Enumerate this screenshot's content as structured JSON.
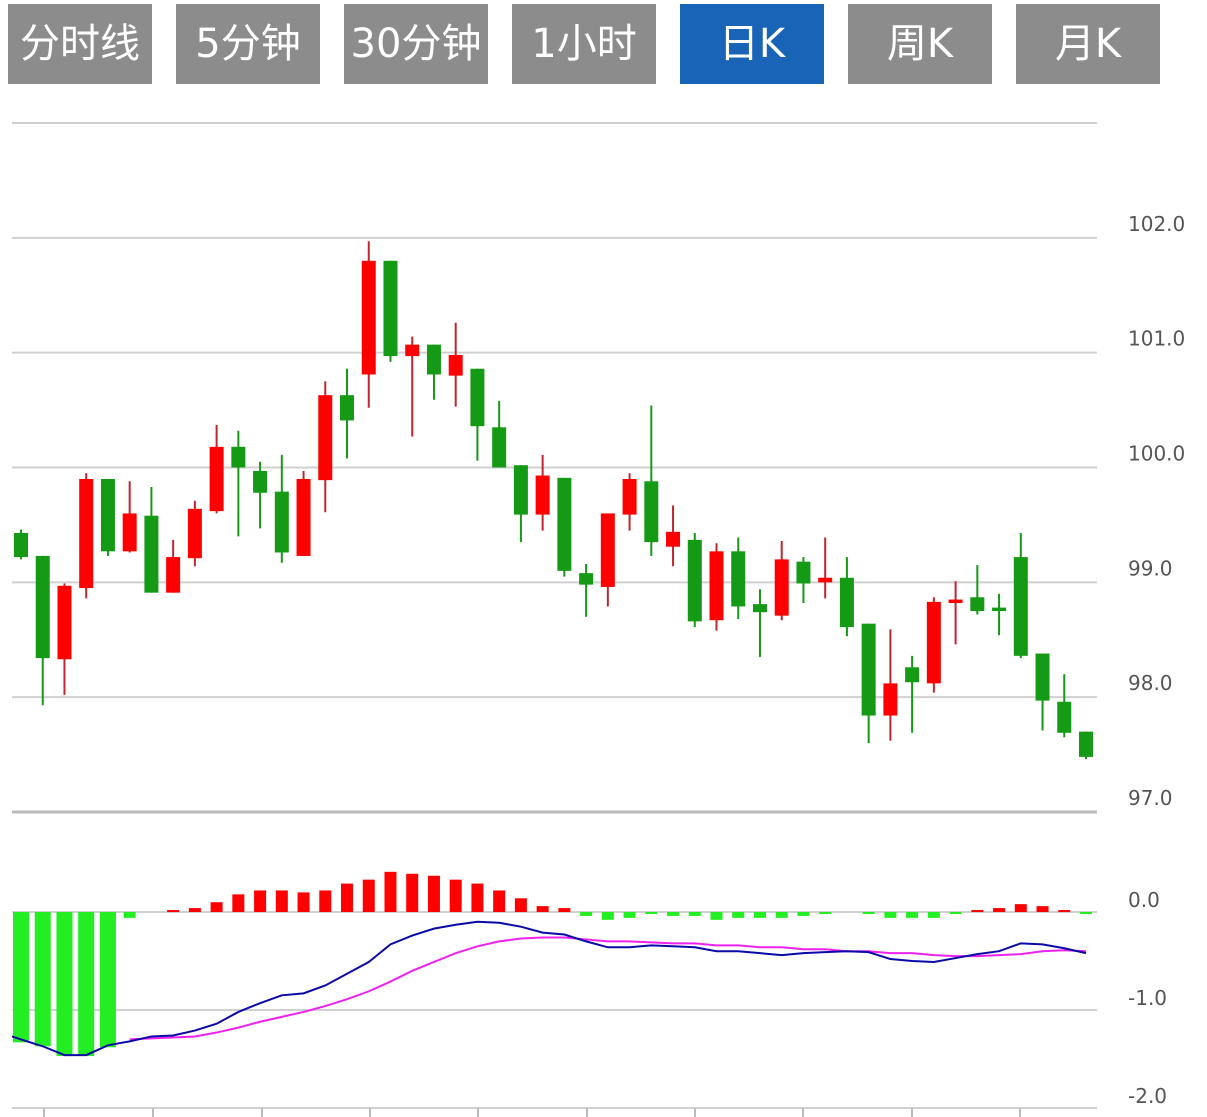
{
  "tabs": [
    {
      "label": "分时线",
      "active": false
    },
    {
      "label": "5分钟",
      "active": false
    },
    {
      "label": "30分钟",
      "active": false
    },
    {
      "label": "1小时",
      "active": false
    },
    {
      "label": "日K",
      "active": true
    },
    {
      "label": "周K",
      "active": false
    },
    {
      "label": "月K",
      "active": false
    }
  ],
  "colors": {
    "up": "#ff0000",
    "down": "#149a14",
    "hist_up": "#ff0000",
    "hist_down": "#22ee22",
    "dif": "#0a0aa8",
    "dea": "#ee22ee",
    "tab": "#8c8c8c",
    "tab_active": "#1a64b8",
    "grid": "#d0d0d0"
  },
  "chart_data": [
    {
      "type": "candlestick",
      "ylim": [
        97.0,
        103.0
      ],
      "yticks": [
        "97.0",
        "98.0",
        "99.0",
        "100.0",
        "101.0",
        "102.0"
      ],
      "grid": true,
      "candles": [
        [
          99.43,
          99.22,
          99.46,
          99.2
        ],
        [
          99.23,
          98.34,
          99.23,
          97.93
        ],
        [
          98.33,
          98.97,
          98.99,
          98.02
        ],
        [
          98.95,
          99.9,
          99.95,
          98.86
        ],
        [
          99.9,
          99.27,
          99.9,
          99.23
        ],
        [
          99.27,
          99.6,
          99.88,
          99.26
        ],
        [
          99.58,
          98.91,
          99.83,
          98.91
        ],
        [
          98.91,
          99.22,
          99.37,
          98.91
        ],
        [
          99.21,
          99.64,
          99.71,
          99.14
        ],
        [
          99.62,
          100.18,
          100.37,
          99.6
        ],
        [
          100.18,
          100.0,
          100.32,
          99.4
        ],
        [
          99.97,
          99.78,
          100.05,
          99.47
        ],
        [
          99.79,
          99.26,
          100.11,
          99.17
        ],
        [
          99.23,
          99.9,
          99.97,
          99.23
        ],
        [
          99.89,
          100.63,
          100.75,
          99.61
        ],
        [
          100.63,
          100.41,
          100.86,
          100.08
        ],
        [
          100.81,
          101.8,
          101.97,
          100.52
        ],
        [
          101.8,
          100.97,
          101.8,
          100.92
        ],
        [
          100.97,
          101.07,
          101.14,
          100.27
        ],
        [
          101.07,
          100.81,
          101.07,
          100.59
        ],
        [
          100.8,
          100.98,
          101.26,
          100.53
        ],
        [
          100.86,
          100.36,
          100.86,
          100.06
        ],
        [
          100.35,
          100.0,
          100.58,
          100.0
        ],
        [
          100.02,
          99.59,
          100.02,
          99.35
        ],
        [
          99.59,
          99.93,
          100.11,
          99.45
        ],
        [
          99.91,
          99.1,
          99.91,
          99.05
        ],
        [
          99.08,
          98.98,
          99.16,
          98.7
        ],
        [
          98.96,
          99.6,
          99.6,
          98.79
        ],
        [
          99.59,
          99.9,
          99.95,
          99.45
        ],
        [
          99.88,
          99.35,
          100.54,
          99.23
        ],
        [
          99.31,
          99.44,
          99.67,
          99.14
        ],
        [
          99.37,
          98.66,
          99.43,
          98.61
        ],
        [
          98.67,
          99.27,
          99.34,
          98.58
        ],
        [
          99.27,
          98.79,
          99.39,
          98.68
        ],
        [
          98.81,
          98.74,
          98.94,
          98.35
        ],
        [
          98.71,
          99.2,
          99.36,
          98.67
        ],
        [
          99.18,
          98.99,
          99.22,
          98.82
        ],
        [
          99.0,
          99.04,
          99.39,
          98.86
        ],
        [
          99.04,
          98.61,
          99.22,
          98.53
        ],
        [
          98.64,
          97.84,
          98.64,
          97.6
        ],
        [
          97.84,
          98.12,
          98.59,
          97.62
        ],
        [
          98.26,
          98.13,
          98.36,
          97.69
        ],
        [
          98.12,
          98.83,
          98.87,
          98.04
        ],
        [
          98.82,
          98.85,
          99.01,
          98.46
        ],
        [
          98.87,
          98.75,
          99.15,
          98.72
        ],
        [
          98.78,
          98.75,
          98.9,
          98.54
        ],
        [
          99.22,
          98.36,
          99.43,
          98.34
        ],
        [
          98.38,
          97.97,
          98.38,
          97.71
        ],
        [
          97.96,
          97.69,
          98.2,
          97.65
        ],
        [
          97.7,
          97.48,
          97.7,
          97.46
        ]
      ]
    },
    {
      "type": "macd",
      "ylim": [
        -2.0,
        1.0
      ],
      "yticks": [
        "-2.0",
        "-1.0",
        "0.0"
      ],
      "grid": true,
      "histogram": [
        -1.33,
        -1.37,
        -1.47,
        -1.47,
        -1.38,
        -0.06,
        0,
        0.02,
        0.04,
        0.1,
        0.18,
        0.22,
        0.22,
        0.2,
        0.22,
        0.29,
        0.33,
        0.41,
        0.39,
        0.37,
        0.33,
        0.29,
        0.22,
        0.14,
        0.06,
        0.04,
        -0.04,
        -0.08,
        -0.06,
        -0.01,
        -0.04,
        -0.04,
        -0.08,
        -0.06,
        -0.06,
        -0.06,
        -0.04,
        -0.01,
        0,
        -0.01,
        -0.06,
        -0.06,
        -0.06,
        -0.01,
        0.02,
        0.04,
        0.08,
        0.06,
        0.02,
        -0.01
      ],
      "dif": [
        -1.3,
        -1.37,
        -1.46,
        -1.46,
        -1.36,
        -1.32,
        -1.27,
        -1.26,
        -1.21,
        -1.14,
        -1.02,
        -0.93,
        -0.85,
        -0.83,
        -0.75,
        -0.63,
        -0.51,
        -0.33,
        -0.24,
        -0.17,
        -0.13,
        -0.1,
        -0.11,
        -0.15,
        -0.21,
        -0.23,
        -0.3,
        -0.36,
        -0.36,
        -0.34,
        -0.35,
        -0.36,
        -0.4,
        -0.4,
        -0.42,
        -0.44,
        -0.42,
        -0.41,
        -0.4,
        -0.41,
        -0.48,
        -0.5,
        -0.51,
        -0.47,
        -0.43,
        -0.4,
        -0.32,
        -0.33,
        -0.37,
        -0.42
      ],
      "dea": [
        null,
        null,
        null,
        null,
        null,
        -1.3,
        -1.29,
        -1.28,
        -1.27,
        -1.23,
        -1.18,
        -1.12,
        -1.07,
        -1.02,
        -0.96,
        -0.89,
        -0.81,
        -0.71,
        -0.6,
        -0.51,
        -0.42,
        -0.35,
        -0.3,
        -0.27,
        -0.26,
        -0.26,
        -0.28,
        -0.3,
        -0.3,
        -0.31,
        -0.32,
        -0.32,
        -0.34,
        -0.34,
        -0.36,
        -0.36,
        -0.38,
        -0.38,
        -0.4,
        -0.4,
        -0.42,
        -0.42,
        -0.44,
        -0.45,
        -0.45,
        -0.44,
        -0.43,
        -0.4,
        -0.39,
        -0.4
      ]
    }
  ]
}
